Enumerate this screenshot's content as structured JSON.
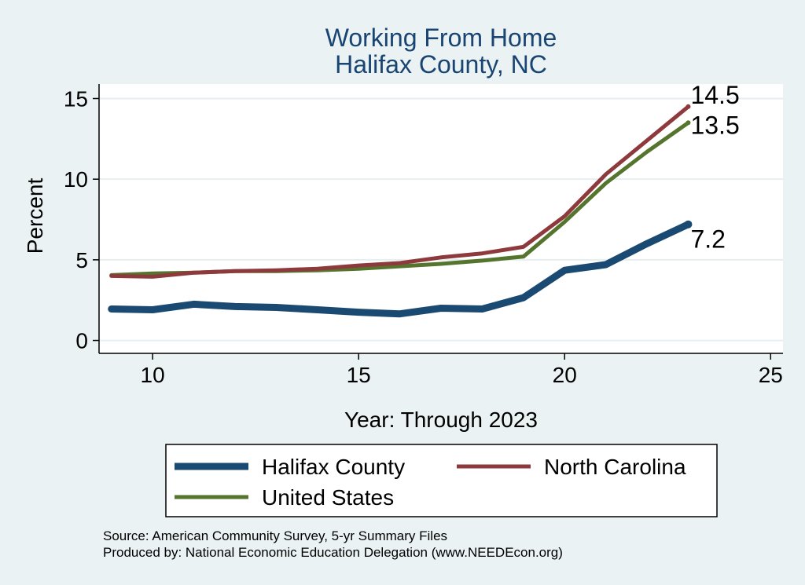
{
  "chart_data": {
    "type": "line",
    "title": "Working From Home",
    "subtitle": "Halifax County, NC",
    "xlabel": "Year: Through 2023",
    "ylabel": "Percent",
    "xlim": [
      8.7,
      25.3
    ],
    "ylim": [
      -0.8,
      15.9
    ],
    "xticks": [
      10,
      15,
      20,
      25
    ],
    "yticks": [
      0,
      5,
      10,
      15
    ],
    "grid": true,
    "legend_position": "bottom",
    "x": [
      9,
      10,
      11,
      12,
      13,
      14,
      15,
      16,
      17,
      18,
      19,
      20,
      21,
      22,
      23
    ],
    "series": [
      {
        "name": "Halifax County",
        "color": "#1a4a72",
        "values": [
          1.95,
          1.9,
          2.25,
          2.1,
          2.05,
          1.9,
          1.75,
          1.65,
          2.0,
          1.95,
          2.65,
          4.35,
          4.7,
          6.0,
          7.2
        ],
        "end_label": "7.2"
      },
      {
        "name": "North Carolina",
        "color": "#8e3a3d",
        "values": [
          4.0,
          3.95,
          4.2,
          4.3,
          4.35,
          4.45,
          4.65,
          4.8,
          5.15,
          5.4,
          5.8,
          7.7,
          10.3,
          12.4,
          14.5
        ],
        "end_label": "14.5"
      },
      {
        "name": "United States",
        "color": "#55752f",
        "values": [
          4.05,
          4.15,
          4.2,
          4.3,
          4.3,
          4.35,
          4.45,
          4.6,
          4.75,
          4.95,
          5.2,
          7.35,
          9.75,
          11.7,
          13.5
        ],
        "end_label": "13.5"
      }
    ],
    "notes": [
      "Source: American Community Survey, 5-yr Summary Files",
      "Produced by: National Economic Education Delegation (www.NEEDEcon.org)"
    ]
  }
}
